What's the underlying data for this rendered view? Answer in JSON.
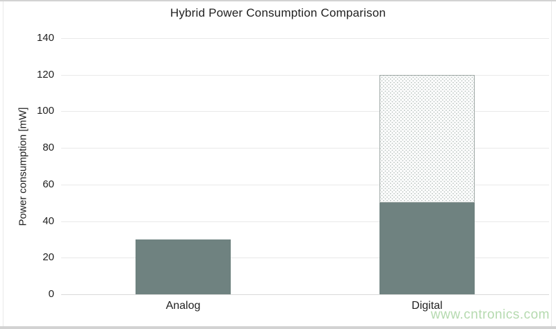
{
  "chart_data": {
    "type": "bar",
    "stacked": true,
    "title": "Hybrid Power Consumption Comparison",
    "ylabel": "Power consumption [mW]",
    "xlabel": "",
    "categories": [
      "Analog",
      "Digital"
    ],
    "series": [
      {
        "name": "solid-fill-segment",
        "style": "solid",
        "values": [
          30,
          50
        ]
      },
      {
        "name": "dotted-pattern-segment",
        "style": "dotted",
        "values": [
          0,
          70
        ]
      }
    ],
    "totals": [
      30,
      120
    ],
    "ylim": [
      0,
      140
    ],
    "ytick_step": 20,
    "ytick_labels": [
      "0",
      "20",
      "40",
      "60",
      "80",
      "100",
      "120",
      "140"
    ],
    "grid": true,
    "legend": false
  },
  "watermark": {
    "text": "www.cntronics.com"
  },
  "colors": {
    "bar_solid": "#6F8280",
    "pattern_dot": "#C3CBC8",
    "pattern_border": "#9FA9A6",
    "gridline": "#E9E9E9",
    "axis_line": "#D9D9D9",
    "text": "#212121",
    "watermark": "#B5DAAF",
    "frame": "#D2D2D2"
  }
}
